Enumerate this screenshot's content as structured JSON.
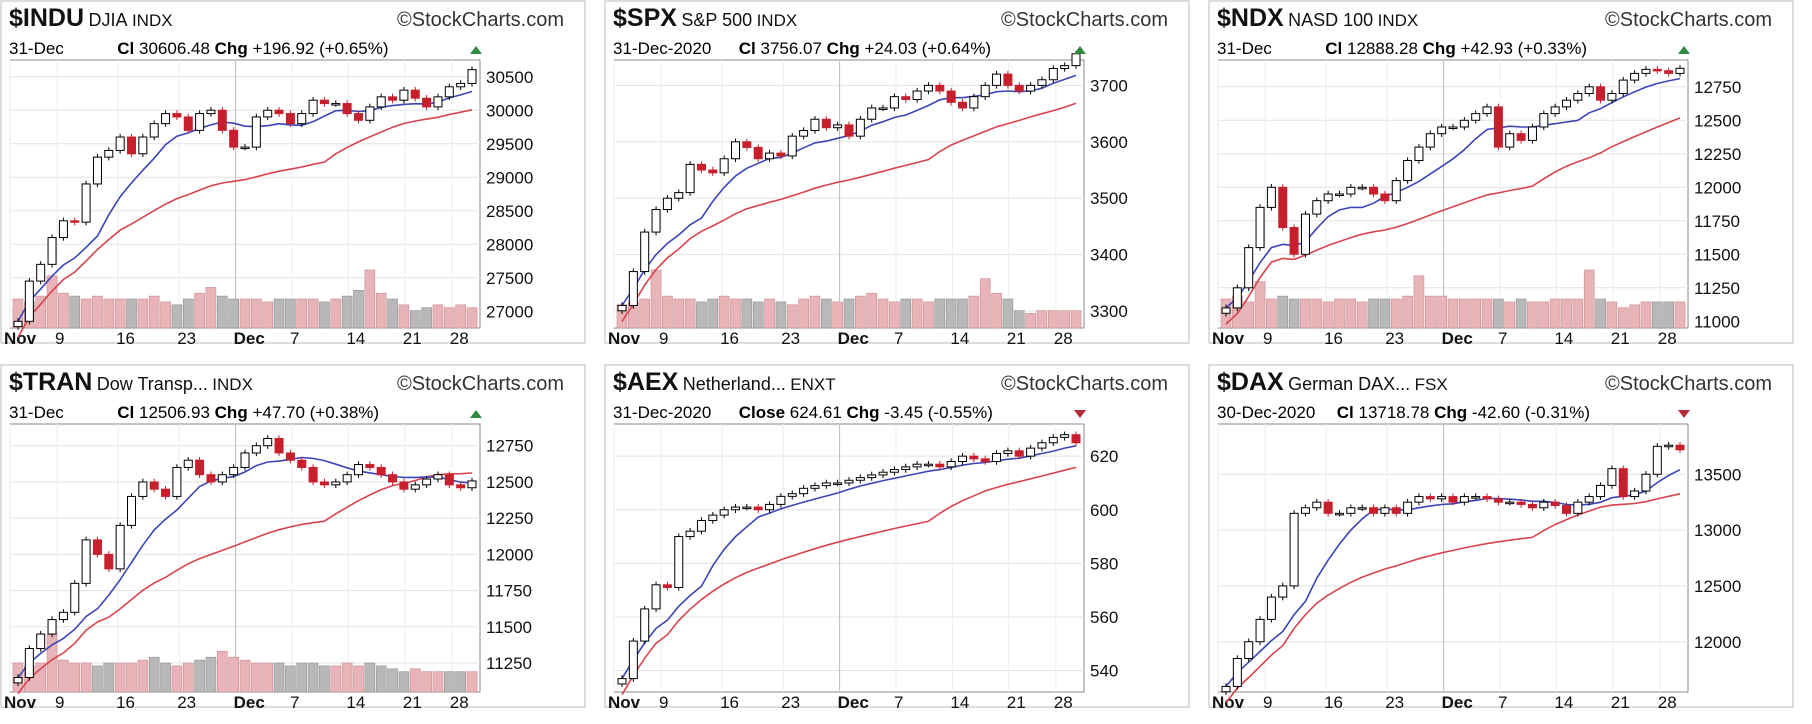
{
  "brand": "StockCharts.com",
  "colors": {
    "up_volume": "#e8b4b8",
    "dn_volume": "#b8b8b8",
    "ma_short": "#3a46b8",
    "ma_long": "#d9434e",
    "candle_red": "#c81f2d",
    "arrow_up": "#2e8b3e",
    "arrow_down": "#b32a3a"
  },
  "chart_data": [
    {
      "type": "candlestick",
      "symbol": "$INDU",
      "name": "DJIA",
      "exchange": "INDX",
      "date": "31-Dec",
      "close_label": "Cl",
      "close": "30606.48",
      "change_label": "Chg",
      "change": "+196.92 (+0.65%)",
      "direction": "up",
      "yticks": [
        27000,
        27500,
        28000,
        28500,
        29000,
        29500,
        30000,
        30500
      ],
      "ylim": [
        26750,
        30750
      ],
      "xticks": [
        "Nov",
        "9",
        "16",
        "23",
        "Dec",
        "7",
        "14",
        "21",
        "28"
      ],
      "close_series": [
        26850,
        27450,
        27700,
        28100,
        28350,
        28330,
        28900,
        29300,
        29400,
        29600,
        29350,
        29600,
        29800,
        29950,
        29900,
        29700,
        29950,
        30000,
        29700,
        29450,
        29450,
        29900,
        30000,
        29950,
        29800,
        29950,
        30150,
        30100,
        30100,
        29950,
        29850,
        30050,
        30200,
        30150,
        30300,
        30180,
        30050,
        30200,
        30350,
        30400,
        30606
      ],
      "vol_series": [
        0.5,
        0.45,
        0.55,
        0.9,
        0.6,
        0.55,
        0.5,
        0.55,
        0.5,
        0.5,
        0.5,
        0.5,
        0.55,
        0.45,
        0.4,
        0.5,
        0.6,
        0.7,
        0.55,
        0.5,
        0.5,
        0.5,
        0.45,
        0.5,
        0.5,
        0.5,
        0.5,
        0.45,
        0.5,
        0.55,
        0.65,
        1.0,
        0.6,
        0.5,
        0.4,
        0.3,
        0.35,
        0.4,
        0.35,
        0.4,
        0.35
      ]
    },
    {
      "type": "candlestick",
      "symbol": "$SPX",
      "name": "S&P 500",
      "exchange": "INDX",
      "date": "31-Dec-2020",
      "close_label": "Cl",
      "close": "3756.07",
      "change_label": "Chg",
      "change": "+24.03 (+0.64%)",
      "direction": "up",
      "yticks": [
        3300,
        3400,
        3500,
        3600,
        3700
      ],
      "ylim": [
        3270,
        3745
      ],
      "xticks": [
        "Nov",
        "9",
        "16",
        "23",
        "Dec",
        "7",
        "14",
        "21",
        "28"
      ],
      "close_series": [
        3310,
        3370,
        3440,
        3480,
        3500,
        3510,
        3560,
        3550,
        3545,
        3570,
        3600,
        3590,
        3570,
        3580,
        3575,
        3610,
        3620,
        3640,
        3625,
        3630,
        3610,
        3640,
        3660,
        3660,
        3680,
        3675,
        3690,
        3700,
        3690,
        3670,
        3660,
        3680,
        3700,
        3720,
        3700,
        3690,
        3700,
        3710,
        3730,
        3735,
        3756
      ],
      "vol_series": [
        0.4,
        0.45,
        0.5,
        1.0,
        0.55,
        0.5,
        0.5,
        0.45,
        0.5,
        0.55,
        0.5,
        0.5,
        0.45,
        0.5,
        0.45,
        0.4,
        0.5,
        0.55,
        0.5,
        0.45,
        0.5,
        0.55,
        0.6,
        0.5,
        0.45,
        0.5,
        0.5,
        0.45,
        0.5,
        0.5,
        0.5,
        0.55,
        0.85,
        0.6,
        0.5,
        0.3,
        0.25,
        0.3,
        0.3,
        0.3,
        0.3
      ]
    },
    {
      "type": "candlestick",
      "symbol": "$NDX",
      "name": "NASD 100",
      "exchange": "INDX",
      "date": "31-Dec",
      "close_label": "Cl",
      "close": "12888.28",
      "change_label": "Chg",
      "change": "+42.93 (+0.33%)",
      "direction": "up",
      "yticks": [
        11000,
        11250,
        11500,
        11750,
        12000,
        12250,
        12500,
        12750
      ],
      "ylim": [
        10950,
        12950
      ],
      "xticks": [
        "Nov",
        "9",
        "16",
        "23",
        "Dec",
        "7",
        "14",
        "21",
        "28"
      ],
      "close_series": [
        11100,
        11250,
        11550,
        11850,
        12000,
        11700,
        11500,
        11800,
        11900,
        11950,
        11950,
        12000,
        12000,
        11950,
        11900,
        12050,
        12200,
        12300,
        12400,
        12450,
        12450,
        12500,
        12550,
        12600,
        12300,
        12400,
        12350,
        12450,
        12550,
        12600,
        12650,
        12700,
        12750,
        12650,
        12700,
        12800,
        12850,
        12880,
        12870,
        12850,
        12888
      ],
      "vol_series": [
        0.5,
        0.55,
        0.45,
        0.8,
        0.5,
        0.55,
        0.5,
        0.5,
        0.5,
        0.45,
        0.5,
        0.5,
        0.45,
        0.5,
        0.5,
        0.5,
        0.55,
        0.9,
        0.55,
        0.55,
        0.5,
        0.5,
        0.5,
        0.5,
        0.5,
        0.45,
        0.5,
        0.45,
        0.45,
        0.5,
        0.5,
        0.5,
        1.0,
        0.5,
        0.45,
        0.35,
        0.4,
        0.45,
        0.45,
        0.45,
        0.45
      ]
    },
    {
      "type": "candlestick",
      "symbol": "$TRAN",
      "name": "Dow Transp...",
      "exchange": "INDX",
      "date": "31-Dec",
      "close_label": "Cl",
      "close": "12506.93",
      "change_label": "Chg",
      "change": "+47.70 (+0.38%)",
      "direction": "up",
      "yticks": [
        11250,
        11500,
        11750,
        12000,
        12250,
        12500,
        12750
      ],
      "ylim": [
        11050,
        12900
      ],
      "xticks": [
        "Nov",
        "9",
        "16",
        "23",
        "Dec",
        "7",
        "14",
        "21",
        "28"
      ],
      "close_series": [
        11150,
        11350,
        11450,
        11550,
        11600,
        11800,
        12100,
        12000,
        11900,
        12200,
        12400,
        12500,
        12450,
        12400,
        12600,
        12650,
        12550,
        12500,
        12550,
        12600,
        12700,
        12750,
        12800,
        12700,
        12650,
        12600,
        12500,
        12480,
        12500,
        12550,
        12620,
        12600,
        12550,
        12500,
        12450,
        12480,
        12520,
        12550,
        12480,
        12460,
        12507
      ],
      "vol_series": [
        0.5,
        0.45,
        0.5,
        1.0,
        0.55,
        0.5,
        0.5,
        0.45,
        0.5,
        0.5,
        0.5,
        0.55,
        0.6,
        0.5,
        0.45,
        0.5,
        0.55,
        0.6,
        0.7,
        0.6,
        0.55,
        0.5,
        0.5,
        0.5,
        0.45,
        0.5,
        0.5,
        0.45,
        0.45,
        0.5,
        0.45,
        0.5,
        0.45,
        0.4,
        0.35,
        0.4,
        0.35,
        0.35,
        0.35,
        0.35,
        0.35
      ]
    },
    {
      "type": "candlestick",
      "symbol": "$AEX",
      "name": "Netherland...",
      "exchange": "ENXT",
      "date": "31-Dec-2020",
      "close_label": "Close",
      "close": "624.61",
      "change_label": "Chg",
      "change": "-3.45 (-0.55%)",
      "direction": "down",
      "yticks": [
        540,
        560,
        580,
        600,
        620
      ],
      "ylim": [
        532,
        632
      ],
      "xticks": [
        "Nov",
        "9",
        "16",
        "23",
        "Dec",
        "7",
        "14",
        "21",
        "28"
      ],
      "close_series": [
        537,
        551,
        563,
        572,
        571,
        590,
        592,
        596,
        598,
        600,
        601,
        601,
        600,
        602,
        605,
        606,
        608,
        609,
        610,
        610,
        611,
        612,
        613,
        614,
        615,
        616,
        617,
        617,
        616,
        618,
        620,
        619,
        618,
        621,
        622,
        620,
        623,
        625,
        627,
        628,
        625
      ],
      "vol_series": []
    },
    {
      "type": "candlestick",
      "symbol": "$DAX",
      "name": "German DAX...",
      "exchange": "FSX",
      "date": "30-Dec-2020",
      "close_label": "Cl",
      "close": "13718.78",
      "change_label": "Chg",
      "change": "-42.60 (-0.31%)",
      "direction": "down",
      "yticks": [
        12000,
        12500,
        13000,
        13500
      ],
      "ylim": [
        11550,
        13950
      ],
      "xticks": [
        "Nov",
        "9",
        "16",
        "23",
        "Dec",
        "7",
        "14",
        "21",
        "28"
      ],
      "close_series": [
        11600,
        11850,
        12000,
        12200,
        12400,
        12500,
        13150,
        13200,
        13250,
        13150,
        13150,
        13200,
        13200,
        13150,
        13200,
        13150,
        13250,
        13300,
        13280,
        13300,
        13250,
        13300,
        13300,
        13280,
        13250,
        13250,
        13230,
        13200,
        13250,
        13220,
        13150,
        13250,
        13300,
        13400,
        13550,
        13300,
        13350,
        13500,
        13750,
        13760,
        13719
      ],
      "vol_series": []
    }
  ]
}
